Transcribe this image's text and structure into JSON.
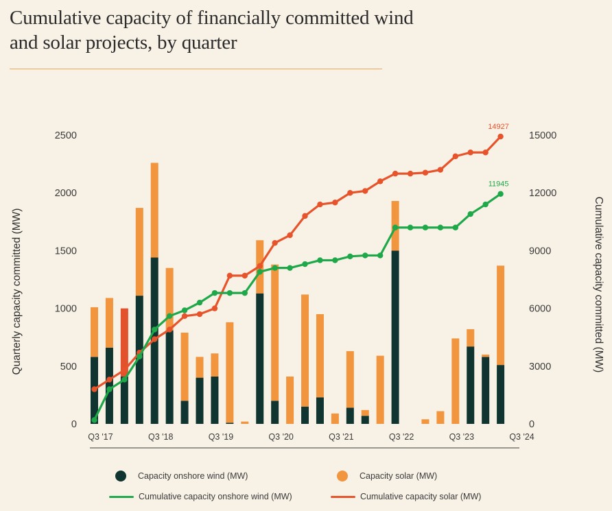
{
  "title": "Cumulative capacity of financially committed wind and solar projects, by quarter",
  "colors": {
    "background": "#f8f1e6",
    "wind": "#10342f",
    "solar": "#f2953f",
    "solar_highlight": "#e2522c",
    "cum_wind": "#1fa84a",
    "cum_solar": "#e7532a",
    "rule": "#f0a35a"
  },
  "chart_data": {
    "type": "bar",
    "categories": [
      "Q3 '17",
      "Q4 '17",
      "Q1 '18",
      "Q2 '18",
      "Q3 '18",
      "Q4 '18",
      "Q1 '19",
      "Q2 '19",
      "Q3 '19",
      "Q4 '19",
      "Q1 '20",
      "Q2 '20",
      "Q3 '20",
      "Q4 '20",
      "Q1 '21",
      "Q2 '21",
      "Q3 '21",
      "Q4 '21",
      "Q1 '22",
      "Q2 '22",
      "Q3 '22",
      "Q4 '22",
      "Q1 '23",
      "Q2 '23",
      "Q3 '23",
      "Q4 '23",
      "Q1 '24",
      "Q2 '24",
      "Q3 '24"
    ],
    "x_tick_labels": [
      "Q3 '17",
      "Q3 '18",
      "Q3 '19",
      "Q3 '20",
      "Q3 '21",
      "Q3 '22",
      "Q3 '23",
      "Q3 '24"
    ],
    "series": [
      {
        "name": "Capacity onshore wind (MW)",
        "type": "bar",
        "axis": "left",
        "values": [
          580,
          660,
          410,
          1110,
          1440,
          810,
          200,
          400,
          410,
          10,
          0,
          1130,
          200,
          0,
          150,
          230,
          0,
          140,
          70,
          0,
          1500,
          0,
          0,
          0,
          0,
          670,
          580,
          510,
          0
        ]
      },
      {
        "name": "Capacity solar (MW)",
        "type": "bar",
        "axis": "left",
        "values": [
          430,
          430,
          590,
          760,
          820,
          540,
          590,
          180,
          200,
          870,
          20,
          460,
          1180,
          410,
          970,
          720,
          90,
          490,
          50,
          590,
          430,
          0,
          40,
          110,
          740,
          150,
          20,
          860,
          0
        ],
        "highlight_index": 2
      },
      {
        "name": "Cumulative capacity onshore wind (MW)",
        "type": "line",
        "axis": "right",
        "values": [
          200,
          1800,
          2300,
          3500,
          4900,
          5600,
          5900,
          6300,
          6800,
          6800,
          6800,
          7900,
          8100,
          8100,
          8300,
          8500,
          8500,
          8700,
          8750,
          8750,
          10200,
          10200,
          10200,
          10200,
          10200,
          10900,
          11400,
          11945,
          null
        ]
      },
      {
        "name": "Cumulative capacity solar (MW)",
        "type": "line",
        "axis": "right",
        "values": [
          1800,
          2300,
          2800,
          3700,
          4400,
          4900,
          5600,
          5700,
          6000,
          7700,
          7700,
          8200,
          9400,
          9800,
          10800,
          11400,
          11500,
          12000,
          12100,
          12600,
          13000,
          13000,
          13050,
          13200,
          13900,
          14100,
          14100,
          14927,
          null
        ]
      }
    ],
    "point_labels": [
      {
        "series": "Cumulative capacity solar (MW)",
        "text": "14927"
      },
      {
        "series": "Cumulative capacity onshore wind (MW)",
        "text": "11945"
      }
    ],
    "ylabel": "Quarterly capacity committed (MW)",
    "y2label": "Cumulative capacity committed (MW)",
    "ylim": [
      0,
      2500
    ],
    "y2lim": [
      0,
      15000
    ],
    "yticks": [
      0,
      500,
      1000,
      1500,
      2000,
      2500
    ],
    "y2ticks": [
      0,
      3000,
      6000,
      9000,
      12000,
      15000
    ],
    "grid": false,
    "legend": "bottom"
  },
  "legend": {
    "wind_bar": "Capacity onshore wind (MW)",
    "solar_bar": "Capacity solar (MW)",
    "wind_line": "Cumulative capacity onshore wind (MW)",
    "solar_line": "Cumulative capacity solar (MW)"
  }
}
